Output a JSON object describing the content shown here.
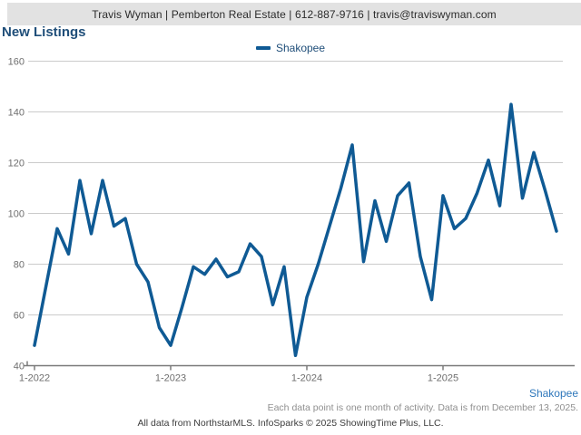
{
  "header": {
    "contact_line": "Travis Wyman | Pemberton Real Estate | 612-887-9716 | travis@traviswyman.com"
  },
  "title": "New Listings",
  "footer": {
    "series_label": "Shakopee",
    "note1": "Each data point is one month of activity. Data is from December 13, 2025.",
    "note2": "All data from NorthstarMLS. InfoSparks © 2025 ShowingTime Plus, LLC."
  },
  "colors": {
    "line": "#0f5a94",
    "title_text": "#1f4e79",
    "legend_text": "#1f4e79",
    "gridline": "#cbcbcb",
    "axis": "#7a7a7a",
    "tick_label": "#6e6e6e",
    "header_bg": "#e2e2e2",
    "footer_link": "#2e77bb"
  },
  "chart_data": {
    "type": "line",
    "title": "New Listings",
    "xlabel": "",
    "ylabel": "",
    "ylim": [
      40,
      160
    ],
    "ytick_step": 20,
    "grid": true,
    "legend_position": "top-center",
    "categories": [
      "1-2022",
      "2-2022",
      "3-2022",
      "4-2022",
      "5-2022",
      "6-2022",
      "7-2022",
      "8-2022",
      "9-2022",
      "10-2022",
      "11-2022",
      "12-2022",
      "1-2023",
      "2-2023",
      "3-2023",
      "4-2023",
      "5-2023",
      "6-2023",
      "7-2023",
      "8-2023",
      "9-2023",
      "10-2023",
      "11-2023",
      "12-2023",
      "1-2024",
      "2-2024",
      "3-2024",
      "4-2024",
      "5-2024",
      "6-2024",
      "7-2024",
      "8-2024",
      "9-2024",
      "10-2024",
      "11-2024",
      "12-2024",
      "1-2025",
      "2-2025",
      "3-2025",
      "4-2025",
      "5-2025",
      "6-2025",
      "7-2025",
      "8-2025",
      "9-2025",
      "10-2025",
      "11-2025"
    ],
    "xticks": [
      {
        "index": 0,
        "label": "1-2022"
      },
      {
        "index": 12,
        "label": "1-2023"
      },
      {
        "index": 24,
        "label": "1-2024"
      },
      {
        "index": 36,
        "label": "1-2025"
      }
    ],
    "series": [
      {
        "name": "Shakopee",
        "color": "#0f5a94",
        "values": [
          48,
          71,
          94,
          84,
          113,
          92,
          113,
          95,
          98,
          80,
          73,
          55,
          48,
          63,
          79,
          76,
          82,
          75,
          77,
          88,
          83,
          64,
          79,
          44,
          67,
          80,
          95,
          110,
          127,
          81,
          105,
          89,
          107,
          112,
          83,
          66,
          107,
          94,
          98,
          108,
          121,
          103,
          143,
          106,
          124,
          109,
          93
        ]
      }
    ]
  }
}
